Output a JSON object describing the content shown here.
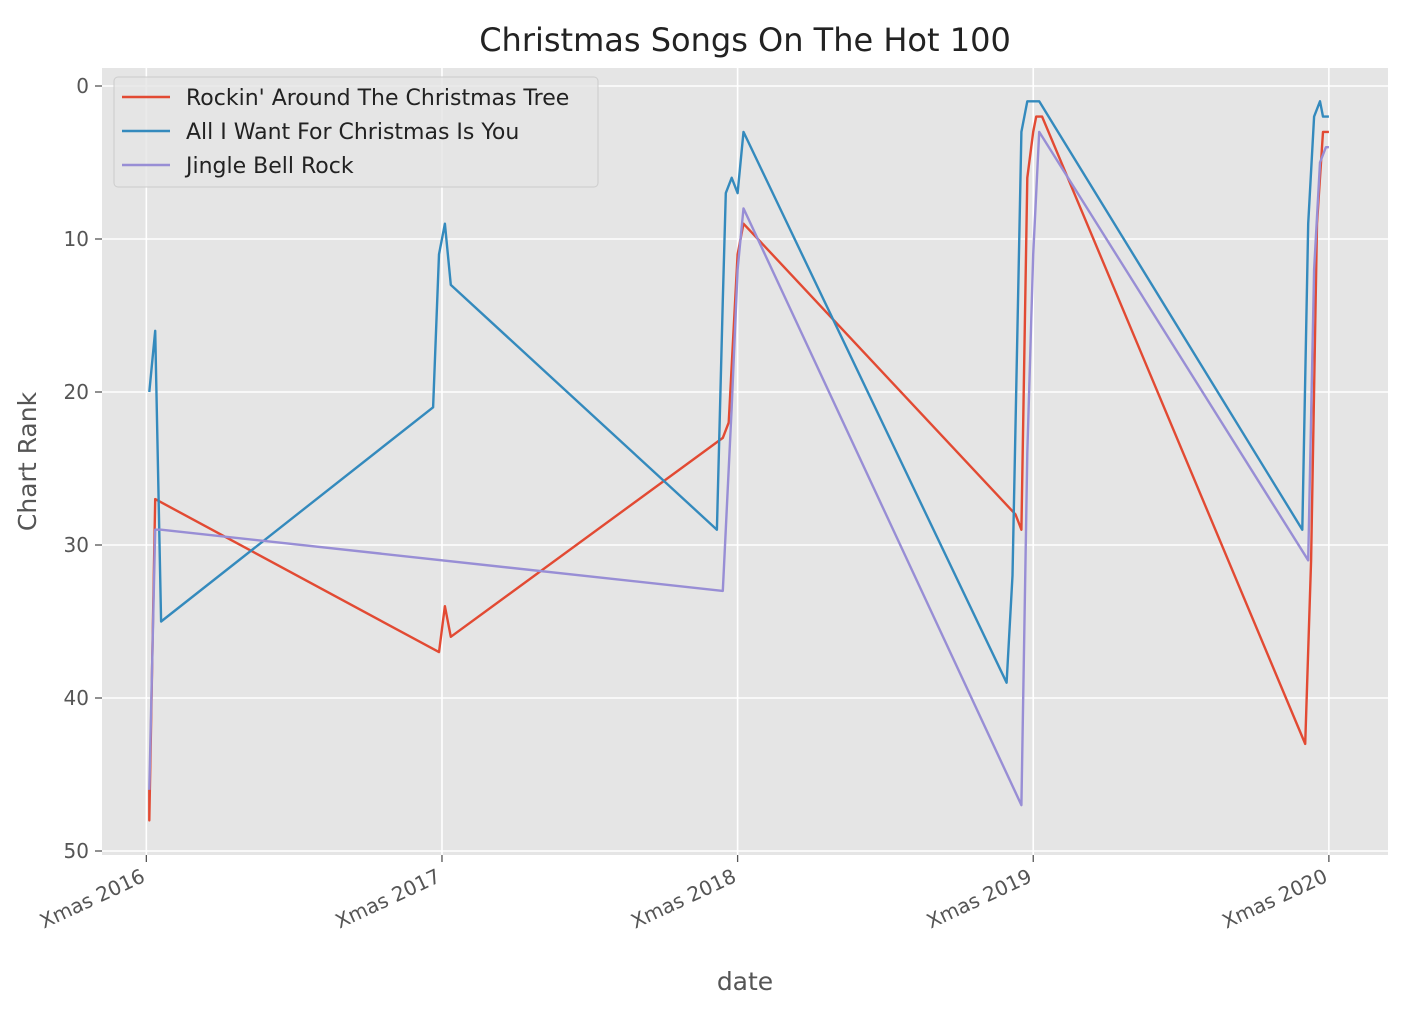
{
  "chart_data": {
    "type": "line",
    "title": "Christmas Songs On The Hot 100",
    "xlabel": "date",
    "ylabel": "Chart Rank",
    "y_inverted": true,
    "ylim": [
      0,
      50
    ],
    "yticks": [
      0,
      10,
      20,
      30,
      40,
      50
    ],
    "xlim": [
      2015.85,
      2020.2
    ],
    "xticks": [
      {
        "label": "Xmas 2016",
        "value": 2016.0
      },
      {
        "label": "Xmas 2017",
        "value": 2017.0
      },
      {
        "label": "Xmas 2018",
        "value": 2018.0
      },
      {
        "label": "Xmas 2019",
        "value": 2019.0
      },
      {
        "label": "Xmas 2020",
        "value": 2020.0
      }
    ],
    "grid": true,
    "legend_position": "top-left",
    "background": "#e5e5e5",
    "series": [
      {
        "name": "Rockin' Around The Christmas Tree",
        "color": "#e24a33",
        "points": [
          [
            2016.01,
            46
          ],
          [
            2016.01,
            48
          ],
          [
            2016.03,
            27
          ],
          [
            2016.99,
            37
          ],
          [
            2017.01,
            34
          ],
          [
            2017.03,
            36
          ],
          [
            2017.95,
            23
          ],
          [
            2017.97,
            22
          ],
          [
            2018.0,
            11
          ],
          [
            2018.02,
            9
          ],
          [
            2018.94,
            28
          ],
          [
            2018.96,
            29
          ],
          [
            2018.98,
            6
          ],
          [
            2019.0,
            3
          ],
          [
            2019.01,
            2
          ],
          [
            2019.03,
            2
          ],
          [
            2019.92,
            43
          ],
          [
            2019.94,
            31
          ],
          [
            2019.96,
            9
          ],
          [
            2019.98,
            3
          ],
          [
            2020.0,
            3
          ]
        ]
      },
      {
        "name": "All I Want For Christmas Is You",
        "color": "#348abd",
        "points": [
          [
            2016.01,
            20
          ],
          [
            2016.03,
            16
          ],
          [
            2016.05,
            35
          ],
          [
            2016.97,
            21
          ],
          [
            2016.99,
            11
          ],
          [
            2017.01,
            9
          ],
          [
            2017.03,
            13
          ],
          [
            2017.93,
            29
          ],
          [
            2017.95,
            14
          ],
          [
            2017.96,
            7
          ],
          [
            2017.98,
            6
          ],
          [
            2018.0,
            7
          ],
          [
            2018.02,
            3
          ],
          [
            2018.91,
            39
          ],
          [
            2018.93,
            32
          ],
          [
            2018.96,
            3
          ],
          [
            2018.98,
            1
          ],
          [
            2019.0,
            1
          ],
          [
            2019.02,
            1
          ],
          [
            2019.91,
            29
          ],
          [
            2019.93,
            9
          ],
          [
            2019.95,
            2
          ],
          [
            2019.97,
            1
          ],
          [
            2019.98,
            2
          ],
          [
            2020.0,
            2
          ]
        ]
      },
      {
        "name": "Jingle Bell Rock",
        "color": "#988ed5",
        "points": [
          [
            2016.01,
            46
          ],
          [
            2016.03,
            29
          ],
          [
            2016.05,
            29
          ],
          [
            2017.95,
            33
          ],
          [
            2017.98,
            21
          ],
          [
            2018.0,
            12
          ],
          [
            2018.02,
            8
          ],
          [
            2018.96,
            47
          ],
          [
            2018.98,
            24
          ],
          [
            2019.0,
            11
          ],
          [
            2019.02,
            3
          ],
          [
            2019.93,
            31
          ],
          [
            2019.95,
            12
          ],
          [
            2019.97,
            5
          ],
          [
            2019.99,
            4
          ],
          [
            2020.0,
            4
          ]
        ]
      }
    ]
  }
}
